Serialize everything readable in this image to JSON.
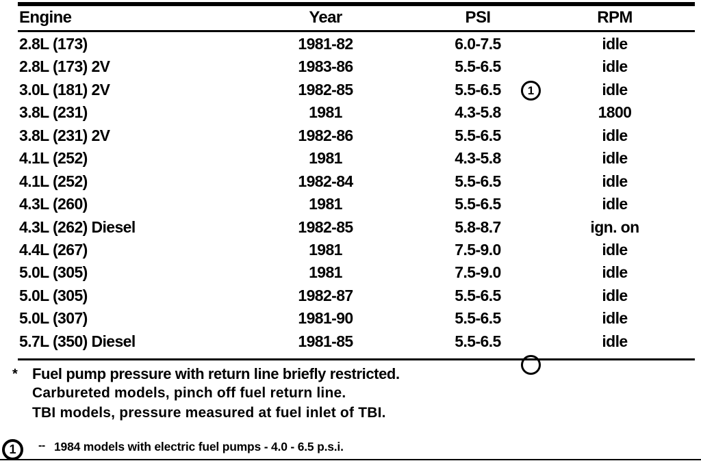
{
  "colors": {
    "ink": "#000000",
    "paper": "#ffffff"
  },
  "table": {
    "columns": [
      "Engine",
      "Year",
      "PSI",
      "RPM"
    ],
    "rows": [
      {
        "engine": "2.8L (173)",
        "year": "1981-82",
        "psi": "6.0-7.5",
        "psi_note": "",
        "rpm": "idle"
      },
      {
        "engine": "2.8L (173) 2V",
        "year": "1983-86",
        "psi": "5.5-6.5",
        "psi_note": "",
        "rpm": "idle"
      },
      {
        "engine": "3.0L (181) 2V",
        "year": "1982-85",
        "psi": "5.5-6.5",
        "psi_note": "1",
        "rpm": "idle"
      },
      {
        "engine": "3.8L (231)",
        "year": "1981",
        "psi": "4.3-5.8",
        "psi_note": "",
        "rpm": "1800"
      },
      {
        "engine": "3.8L (231) 2V",
        "year": "1982-86",
        "psi": "5.5-6.5",
        "psi_note": "",
        "rpm": "idle"
      },
      {
        "engine": "4.1L (252)",
        "year": "1981",
        "psi": "4.3-5.8",
        "psi_note": "",
        "rpm": "idle"
      },
      {
        "engine": "4.1L (252)",
        "year": "1982-84",
        "psi": "5.5-6.5",
        "psi_note": "",
        "rpm": "idle"
      },
      {
        "engine": "4.3L (260)",
        "year": "1981",
        "psi": "5.5-6.5",
        "psi_note": "",
        "rpm": "idle"
      },
      {
        "engine": "4.3L (262) Diesel",
        "year": "1982-85",
        "psi": "5.8-8.7",
        "psi_note": "",
        "rpm": "ign. on"
      },
      {
        "engine": "4.4L (267)",
        "year": "1981",
        "psi": "7.5-9.0",
        "psi_note": "",
        "rpm": "idle"
      },
      {
        "engine": "5.0L (305)",
        "year": "1981",
        "psi": "7.5-9.0",
        "psi_note": "",
        "rpm": "idle"
      },
      {
        "engine": "5.0L (305)",
        "year": "1982-87",
        "psi": "5.5-6.5",
        "psi_note": "",
        "rpm": "idle"
      },
      {
        "engine": "5.0L (307)",
        "year": "1981-90",
        "psi": "5.5-6.5",
        "psi_note": "",
        "rpm": "idle"
      },
      {
        "engine": "5.7L (350) Diesel",
        "year": "1981-85",
        "psi": "5.5-6.5",
        "psi_note": "",
        "rpm": "idle"
      }
    ]
  },
  "footnotes": {
    "asterisk_symbol": "*",
    "asterisk_line1": "Fuel pump pressure with return line briefly restricted.",
    "asterisk_line2": "Carbureted models, pinch off fuel return line.",
    "asterisk_line3": "TBI models, pressure measured at fuel inlet of TBI.",
    "note1_symbol": "1",
    "note1_dash": "--",
    "note1_text": "1984 models with electric fuel pumps - 4.0 - 6.5 p.s.i."
  }
}
